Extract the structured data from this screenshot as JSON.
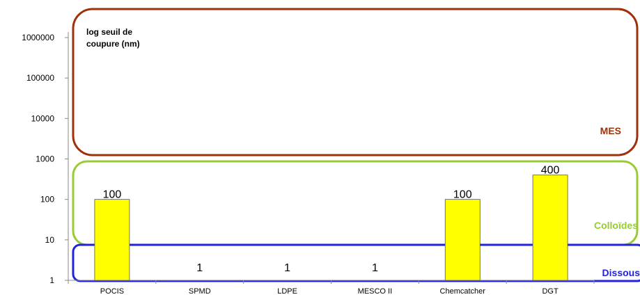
{
  "chart_data": {
    "type": "bar",
    "title": "",
    "ylabel_line1": "log seuil de",
    "ylabel_line2": "coupure (nm)",
    "xlabel": "",
    "yscale": "log",
    "ylim": [
      1,
      1000000
    ],
    "yticks": [
      1,
      10,
      100,
      1000,
      10000,
      100000,
      1000000
    ],
    "ytick_labels": [
      "1",
      "10",
      "100",
      "1000",
      "10000",
      "100000",
      "1000000"
    ],
    "categories": [
      "POCIS",
      "SPMD",
      "LDPE",
      "MESCO II",
      "Chemcatcher",
      "DGT"
    ],
    "values": [
      100,
      1,
      1,
      1,
      100,
      400
    ],
    "data_labels": [
      "100",
      "1",
      "1",
      "1",
      "100",
      "400"
    ],
    "bar_color": "#ffff00",
    "grid": false,
    "zones": [
      {
        "label": "MES",
        "color": "#a0300a",
        "range": [
          1000,
          1000000
        ]
      },
      {
        "label": "Colloïdes",
        "color": "#99cc33",
        "range": [
          5,
          1000
        ]
      },
      {
        "label": "Dissous",
        "color": "#2222dd",
        "range": [
          1,
          5
        ]
      }
    ]
  }
}
